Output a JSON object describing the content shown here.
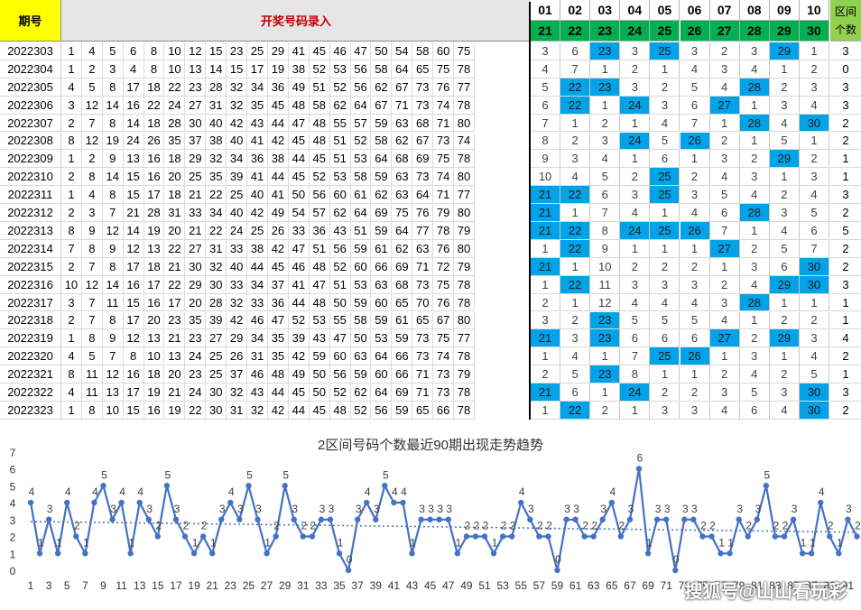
{
  "sheet": {
    "header_period": "期号",
    "header_input": "开奖号码录入",
    "header_count_line1": "区间",
    "header_count_line2": "个数",
    "zones_row1": [
      "01",
      "02",
      "03",
      "04",
      "05",
      "06",
      "07",
      "08",
      "09",
      "10"
    ],
    "zones_row2": [
      "21",
      "22",
      "23",
      "24",
      "25",
      "26",
      "27",
      "28",
      "29",
      "30"
    ],
    "colors": {
      "period_header": "#ffff00",
      "zone_header2": "#00b050",
      "count_header": "#92d050",
      "hit": "#00a2e8",
      "input_header_text": "#c00000"
    },
    "rows": [
      {
        "period": "2022303",
        "nums": [
          "1",
          "4",
          "5",
          "6",
          "8",
          "10",
          "12",
          "15",
          "23",
          "25",
          "29",
          "41",
          "45",
          "46",
          "47",
          "50",
          "54",
          "58",
          "60",
          "75"
        ],
        "zones": [
          "3",
          "6",
          "23",
          "3",
          "25",
          "3",
          "2",
          "3",
          "29",
          "1"
        ],
        "count": "3"
      },
      {
        "period": "2022304",
        "nums": [
          "1",
          "2",
          "3",
          "4",
          "8",
          "10",
          "13",
          "14",
          "15",
          "17",
          "19",
          "38",
          "52",
          "53",
          "56",
          "58",
          "64",
          "65",
          "75",
          "78"
        ],
        "zones": [
          "4",
          "7",
          "1",
          "2",
          "1",
          "4",
          "3",
          "4",
          "1",
          "2"
        ],
        "count": "0"
      },
      {
        "period": "2022305",
        "nums": [
          "4",
          "5",
          "8",
          "17",
          "18",
          "22",
          "23",
          "28",
          "32",
          "34",
          "36",
          "49",
          "51",
          "52",
          "56",
          "62",
          "67",
          "73",
          "76",
          "77"
        ],
        "zones": [
          "5",
          "22",
          "23",
          "3",
          "2",
          "5",
          "4",
          "28",
          "2",
          "3"
        ],
        "count": "3"
      },
      {
        "period": "2022306",
        "nums": [
          "3",
          "12",
          "14",
          "16",
          "22",
          "24",
          "27",
          "31",
          "32",
          "35",
          "45",
          "48",
          "58",
          "62",
          "64",
          "67",
          "71",
          "73",
          "74",
          "78"
        ],
        "zones": [
          "6",
          "22",
          "1",
          "24",
          "3",
          "6",
          "27",
          "1",
          "3",
          "4"
        ],
        "count": "3"
      },
      {
        "period": "2022307",
        "nums": [
          "2",
          "7",
          "8",
          "14",
          "18",
          "28",
          "30",
          "40",
          "42",
          "43",
          "44",
          "47",
          "48",
          "55",
          "57",
          "59",
          "63",
          "68",
          "71",
          "80"
        ],
        "zones": [
          "7",
          "1",
          "2",
          "1",
          "4",
          "7",
          "1",
          "28",
          "4",
          "30"
        ],
        "count": "2"
      },
      {
        "period": "2022308",
        "nums": [
          "8",
          "12",
          "19",
          "24",
          "26",
          "35",
          "37",
          "38",
          "40",
          "41",
          "42",
          "45",
          "48",
          "51",
          "52",
          "58",
          "62",
          "67",
          "73",
          "74"
        ],
        "zones": [
          "8",
          "2",
          "3",
          "24",
          "5",
          "26",
          "2",
          "1",
          "5",
          "1"
        ],
        "count": "2"
      },
      {
        "period": "2022309",
        "nums": [
          "1",
          "2",
          "9",
          "13",
          "16",
          "18",
          "29",
          "32",
          "34",
          "36",
          "38",
          "44",
          "45",
          "51",
          "53",
          "64",
          "68",
          "69",
          "75",
          "78"
        ],
        "zones": [
          "9",
          "3",
          "4",
          "1",
          "6",
          "1",
          "3",
          "2",
          "29",
          "2"
        ],
        "count": "1"
      },
      {
        "period": "2022310",
        "nums": [
          "2",
          "8",
          "14",
          "15",
          "16",
          "20",
          "25",
          "35",
          "39",
          "41",
          "44",
          "45",
          "52",
          "53",
          "58",
          "59",
          "63",
          "73",
          "74",
          "80"
        ],
        "zones": [
          "10",
          "4",
          "5",
          "2",
          "25",
          "2",
          "4",
          "3",
          "1",
          "3"
        ],
        "count": "1"
      },
      {
        "period": "2022311",
        "nums": [
          "1",
          "4",
          "8",
          "15",
          "17",
          "18",
          "21",
          "22",
          "25",
          "40",
          "41",
          "50",
          "56",
          "60",
          "61",
          "62",
          "63",
          "64",
          "71",
          "77"
        ],
        "zones": [
          "21",
          "22",
          "6",
          "3",
          "25",
          "3",
          "5",
          "4",
          "2",
          "4"
        ],
        "count": "3"
      },
      {
        "period": "2022312",
        "nums": [
          "2",
          "3",
          "7",
          "21",
          "28",
          "31",
          "33",
          "34",
          "40",
          "42",
          "49",
          "54",
          "57",
          "62",
          "64",
          "69",
          "75",
          "76",
          "79",
          "80"
        ],
        "zones": [
          "21",
          "1",
          "7",
          "4",
          "1",
          "4",
          "6",
          "28",
          "3",
          "5"
        ],
        "count": "2"
      },
      {
        "period": "2022313",
        "nums": [
          "8",
          "9",
          "12",
          "14",
          "19",
          "20",
          "21",
          "22",
          "24",
          "25",
          "26",
          "33",
          "36",
          "43",
          "51",
          "59",
          "64",
          "77",
          "78",
          "79"
        ],
        "zones": [
          "21",
          "22",
          "8",
          "24",
          "25",
          "26",
          "7",
          "1",
          "4",
          "6"
        ],
        "count": "5"
      },
      {
        "period": "2022314",
        "nums": [
          "7",
          "8",
          "9",
          "12",
          "13",
          "22",
          "27",
          "31",
          "33",
          "38",
          "42",
          "47",
          "51",
          "56",
          "59",
          "61",
          "62",
          "63",
          "76",
          "80"
        ],
        "zones": [
          "1",
          "22",
          "9",
          "1",
          "1",
          "1",
          "27",
          "2",
          "5",
          "7"
        ],
        "count": "2"
      },
      {
        "period": "2022315",
        "nums": [
          "2",
          "7",
          "8",
          "17",
          "18",
          "21",
          "30",
          "32",
          "40",
          "44",
          "45",
          "46",
          "48",
          "52",
          "60",
          "66",
          "69",
          "71",
          "72",
          "79"
        ],
        "zones": [
          "21",
          "1",
          "10",
          "2",
          "2",
          "2",
          "1",
          "3",
          "6",
          "30"
        ],
        "count": "2"
      },
      {
        "period": "2022316",
        "nums": [
          "10",
          "12",
          "14",
          "16",
          "17",
          "22",
          "29",
          "30",
          "33",
          "34",
          "37",
          "41",
          "47",
          "51",
          "53",
          "63",
          "68",
          "73",
          "75",
          "78"
        ],
        "zones": [
          "1",
          "22",
          "11",
          "3",
          "3",
          "3",
          "2",
          "4",
          "29",
          "30"
        ],
        "count": "3"
      },
      {
        "period": "2022317",
        "nums": [
          "3",
          "7",
          "11",
          "15",
          "16",
          "17",
          "20",
          "28",
          "32",
          "33",
          "36",
          "44",
          "48",
          "50",
          "59",
          "60",
          "65",
          "70",
          "76",
          "78"
        ],
        "zones": [
          "2",
          "1",
          "12",
          "4",
          "4",
          "4",
          "3",
          "28",
          "1",
          "1"
        ],
        "count": "1"
      },
      {
        "period": "2022318",
        "nums": [
          "2",
          "7",
          "8",
          "17",
          "20",
          "23",
          "35",
          "39",
          "42",
          "46",
          "47",
          "52",
          "53",
          "55",
          "58",
          "59",
          "61",
          "65",
          "67",
          "80"
        ],
        "zones": [
          "3",
          "2",
          "23",
          "5",
          "5",
          "5",
          "4",
          "1",
          "2",
          "2"
        ],
        "count": "1"
      },
      {
        "period": "2022319",
        "nums": [
          "1",
          "8",
          "9",
          "12",
          "13",
          "21",
          "23",
          "27",
          "29",
          "34",
          "35",
          "39",
          "43",
          "47",
          "50",
          "53",
          "59",
          "73",
          "75",
          "77"
        ],
        "zones": [
          "21",
          "3",
          "23",
          "6",
          "6",
          "6",
          "27",
          "2",
          "29",
          "3"
        ],
        "count": "4"
      },
      {
        "period": "2022320",
        "nums": [
          "4",
          "5",
          "7",
          "8",
          "10",
          "13",
          "24",
          "25",
          "26",
          "31",
          "35",
          "42",
          "59",
          "60",
          "63",
          "64",
          "66",
          "73",
          "74",
          "78"
        ],
        "zones": [
          "1",
          "4",
          "1",
          "7",
          "25",
          "26",
          "1",
          "3",
          "1",
          "4"
        ],
        "count": "2"
      },
      {
        "period": "2022321",
        "nums": [
          "8",
          "11",
          "12",
          "16",
          "18",
          "20",
          "23",
          "25",
          "37",
          "46",
          "48",
          "49",
          "50",
          "56",
          "59",
          "60",
          "66",
          "71",
          "73",
          "79"
        ],
        "zones": [
          "2",
          "5",
          "23",
          "8",
          "1",
          "1",
          "2",
          "4",
          "2",
          "5"
        ],
        "count": "1"
      },
      {
        "period": "2022322",
        "nums": [
          "4",
          "11",
          "13",
          "17",
          "19",
          "21",
          "24",
          "30",
          "32",
          "43",
          "44",
          "45",
          "50",
          "52",
          "62",
          "64",
          "69",
          "71",
          "73",
          "78"
        ],
        "zones": [
          "21",
          "6",
          "1",
          "24",
          "2",
          "2",
          "3",
          "5",
          "3",
          "30"
        ],
        "count": "3"
      },
      {
        "period": "2022323",
        "nums": [
          "1",
          "8",
          "10",
          "15",
          "16",
          "19",
          "22",
          "30",
          "31",
          "32",
          "42",
          "44",
          "45",
          "48",
          "52",
          "56",
          "59",
          "65",
          "66",
          "78"
        ],
        "zones": [
          "1",
          "22",
          "2",
          "1",
          "3",
          "3",
          "4",
          "6",
          "4",
          "30"
        ],
        "count": "2"
      }
    ]
  },
  "chart_data": {
    "type": "line",
    "title": "2区间号码个数最近90期出现走势趋势",
    "ylim": [
      0,
      7
    ],
    "y_ticks": [
      "0",
      "1",
      "2",
      "3",
      "4",
      "5",
      "6",
      "7"
    ],
    "x_tick_labels": [
      "1",
      "3",
      "5",
      "7",
      "9",
      "11",
      "13",
      "15",
      "17",
      "19",
      "21",
      "23",
      "25",
      "27",
      "29",
      "31",
      "33",
      "35",
      "37",
      "39",
      "41",
      "43",
      "45",
      "47",
      "49",
      "51",
      "53",
      "55",
      "57",
      "59",
      "61",
      "63",
      "65",
      "67",
      "69",
      "71",
      "73",
      "75",
      "77",
      "79",
      "81",
      "83",
      "85",
      "87",
      "89",
      "91"
    ],
    "trendline": "linear-dotted",
    "grid": false,
    "series": [
      {
        "values": [
          4,
          1,
          3,
          1,
          4,
          2,
          1,
          4,
          5,
          3,
          4,
          1,
          4,
          3,
          2,
          5,
          3,
          2,
          1,
          2,
          1,
          3,
          4,
          3,
          5,
          3,
          1,
          2,
          5,
          3,
          2,
          2,
          3,
          3,
          1,
          0,
          3,
          4,
          3,
          5,
          4,
          4,
          1,
          3,
          3,
          3,
          3,
          1,
          2,
          2,
          2,
          1,
          2,
          2,
          4,
          3,
          2,
          2,
          0,
          3,
          3,
          2,
          2,
          3,
          4,
          2,
          3,
          6,
          1,
          3,
          3,
          0,
          3,
          3,
          2,
          2,
          1,
          1,
          3,
          2,
          3,
          5,
          2,
          2,
          3,
          1,
          1,
          4,
          2,
          1,
          3,
          2
        ],
        "color": "#4472c4"
      }
    ]
  },
  "watermark": "搜狐号@山山看玩彩"
}
